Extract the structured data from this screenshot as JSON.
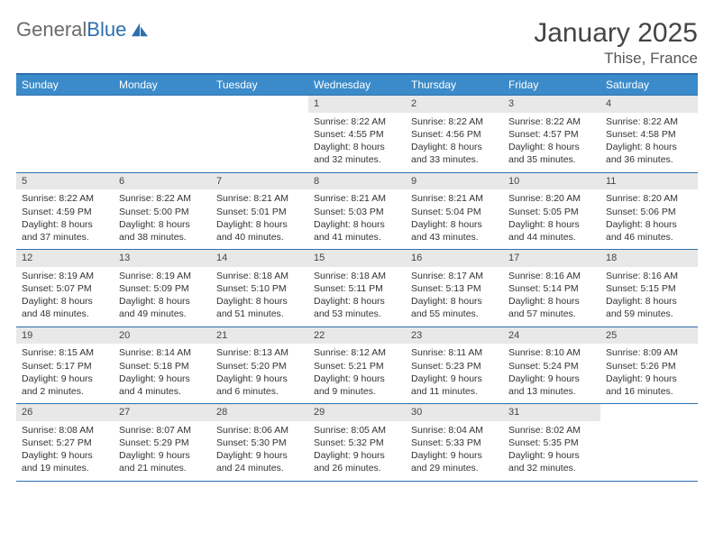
{
  "logo": {
    "text_gray": "General",
    "text_blue": "Blue"
  },
  "title": "January 2025",
  "location": "Thise, France",
  "colors": {
    "header_bg": "#3b8bca",
    "header_border": "#2d6fb0",
    "daynum_bg": "#e8e8e8",
    "text": "#333333",
    "logo_gray": "#6a6a6a",
    "logo_blue": "#2d6fb0"
  },
  "day_headers": [
    "Sunday",
    "Monday",
    "Tuesday",
    "Wednesday",
    "Thursday",
    "Friday",
    "Saturday"
  ],
  "weeks": [
    [
      {
        "day": "",
        "lines": []
      },
      {
        "day": "",
        "lines": []
      },
      {
        "day": "",
        "lines": []
      },
      {
        "day": "1",
        "lines": [
          "Sunrise: 8:22 AM",
          "Sunset: 4:55 PM",
          "Daylight: 8 hours and 32 minutes."
        ]
      },
      {
        "day": "2",
        "lines": [
          "Sunrise: 8:22 AM",
          "Sunset: 4:56 PM",
          "Daylight: 8 hours and 33 minutes."
        ]
      },
      {
        "day": "3",
        "lines": [
          "Sunrise: 8:22 AM",
          "Sunset: 4:57 PM",
          "Daylight: 8 hours and 35 minutes."
        ]
      },
      {
        "day": "4",
        "lines": [
          "Sunrise: 8:22 AM",
          "Sunset: 4:58 PM",
          "Daylight: 8 hours and 36 minutes."
        ]
      }
    ],
    [
      {
        "day": "5",
        "lines": [
          "Sunrise: 8:22 AM",
          "Sunset: 4:59 PM",
          "Daylight: 8 hours and 37 minutes."
        ]
      },
      {
        "day": "6",
        "lines": [
          "Sunrise: 8:22 AM",
          "Sunset: 5:00 PM",
          "Daylight: 8 hours and 38 minutes."
        ]
      },
      {
        "day": "7",
        "lines": [
          "Sunrise: 8:21 AM",
          "Sunset: 5:01 PM",
          "Daylight: 8 hours and 40 minutes."
        ]
      },
      {
        "day": "8",
        "lines": [
          "Sunrise: 8:21 AM",
          "Sunset: 5:03 PM",
          "Daylight: 8 hours and 41 minutes."
        ]
      },
      {
        "day": "9",
        "lines": [
          "Sunrise: 8:21 AM",
          "Sunset: 5:04 PM",
          "Daylight: 8 hours and 43 minutes."
        ]
      },
      {
        "day": "10",
        "lines": [
          "Sunrise: 8:20 AM",
          "Sunset: 5:05 PM",
          "Daylight: 8 hours and 44 minutes."
        ]
      },
      {
        "day": "11",
        "lines": [
          "Sunrise: 8:20 AM",
          "Sunset: 5:06 PM",
          "Daylight: 8 hours and 46 minutes."
        ]
      }
    ],
    [
      {
        "day": "12",
        "lines": [
          "Sunrise: 8:19 AM",
          "Sunset: 5:07 PM",
          "Daylight: 8 hours and 48 minutes."
        ]
      },
      {
        "day": "13",
        "lines": [
          "Sunrise: 8:19 AM",
          "Sunset: 5:09 PM",
          "Daylight: 8 hours and 49 minutes."
        ]
      },
      {
        "day": "14",
        "lines": [
          "Sunrise: 8:18 AM",
          "Sunset: 5:10 PM",
          "Daylight: 8 hours and 51 minutes."
        ]
      },
      {
        "day": "15",
        "lines": [
          "Sunrise: 8:18 AM",
          "Sunset: 5:11 PM",
          "Daylight: 8 hours and 53 minutes."
        ]
      },
      {
        "day": "16",
        "lines": [
          "Sunrise: 8:17 AM",
          "Sunset: 5:13 PM",
          "Daylight: 8 hours and 55 minutes."
        ]
      },
      {
        "day": "17",
        "lines": [
          "Sunrise: 8:16 AM",
          "Sunset: 5:14 PM",
          "Daylight: 8 hours and 57 minutes."
        ]
      },
      {
        "day": "18",
        "lines": [
          "Sunrise: 8:16 AM",
          "Sunset: 5:15 PM",
          "Daylight: 8 hours and 59 minutes."
        ]
      }
    ],
    [
      {
        "day": "19",
        "lines": [
          "Sunrise: 8:15 AM",
          "Sunset: 5:17 PM",
          "Daylight: 9 hours and 2 minutes."
        ]
      },
      {
        "day": "20",
        "lines": [
          "Sunrise: 8:14 AM",
          "Sunset: 5:18 PM",
          "Daylight: 9 hours and 4 minutes."
        ]
      },
      {
        "day": "21",
        "lines": [
          "Sunrise: 8:13 AM",
          "Sunset: 5:20 PM",
          "Daylight: 9 hours and 6 minutes."
        ]
      },
      {
        "day": "22",
        "lines": [
          "Sunrise: 8:12 AM",
          "Sunset: 5:21 PM",
          "Daylight: 9 hours and 9 minutes."
        ]
      },
      {
        "day": "23",
        "lines": [
          "Sunrise: 8:11 AM",
          "Sunset: 5:23 PM",
          "Daylight: 9 hours and 11 minutes."
        ]
      },
      {
        "day": "24",
        "lines": [
          "Sunrise: 8:10 AM",
          "Sunset: 5:24 PM",
          "Daylight: 9 hours and 13 minutes."
        ]
      },
      {
        "day": "25",
        "lines": [
          "Sunrise: 8:09 AM",
          "Sunset: 5:26 PM",
          "Daylight: 9 hours and 16 minutes."
        ]
      }
    ],
    [
      {
        "day": "26",
        "lines": [
          "Sunrise: 8:08 AM",
          "Sunset: 5:27 PM",
          "Daylight: 9 hours and 19 minutes."
        ]
      },
      {
        "day": "27",
        "lines": [
          "Sunrise: 8:07 AM",
          "Sunset: 5:29 PM",
          "Daylight: 9 hours and 21 minutes."
        ]
      },
      {
        "day": "28",
        "lines": [
          "Sunrise: 8:06 AM",
          "Sunset: 5:30 PM",
          "Daylight: 9 hours and 24 minutes."
        ]
      },
      {
        "day": "29",
        "lines": [
          "Sunrise: 8:05 AM",
          "Sunset: 5:32 PM",
          "Daylight: 9 hours and 26 minutes."
        ]
      },
      {
        "day": "30",
        "lines": [
          "Sunrise: 8:04 AM",
          "Sunset: 5:33 PM",
          "Daylight: 9 hours and 29 minutes."
        ]
      },
      {
        "day": "31",
        "lines": [
          "Sunrise: 8:02 AM",
          "Sunset: 5:35 PM",
          "Daylight: 9 hours and 32 minutes."
        ]
      },
      {
        "day": "",
        "lines": []
      }
    ]
  ]
}
